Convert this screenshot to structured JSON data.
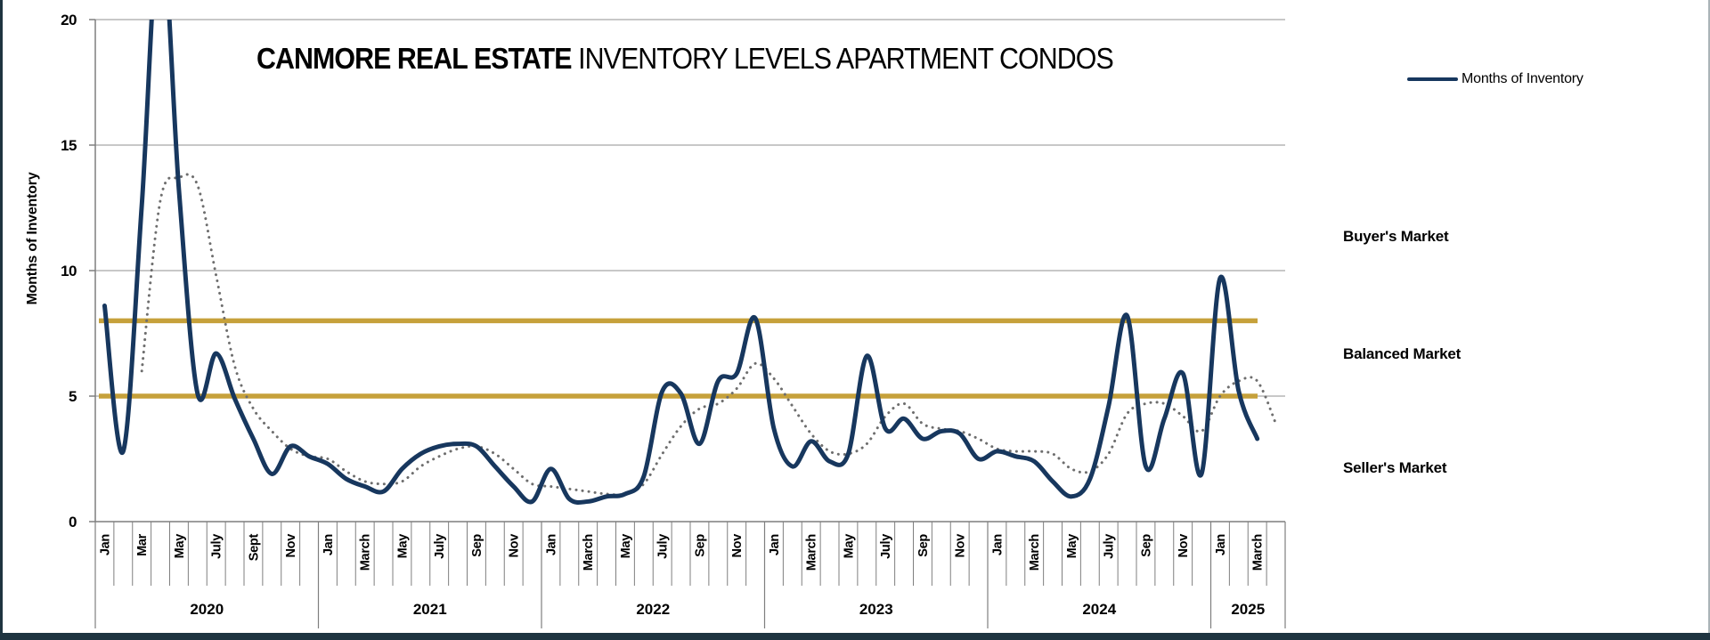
{
  "title": {
    "brand": "CANMORE REAL ESTATE",
    "rest": " INVENTORY LEVELS APARTMENT CONDOS"
  },
  "legend": {
    "series_label": "Months of Inventory"
  },
  "market_labels": {
    "buyers": "Buyer's Market",
    "balanced": "Balanced Market",
    "sellers": "Seller's Market"
  },
  "y_axis": {
    "title": "Months of Inventory",
    "ticks": [
      0,
      5,
      10,
      15,
      20
    ],
    "min": 0,
    "max": 20
  },
  "x_axis": {
    "years": [
      {
        "label": "2020",
        "month_labels": [
          "Jan",
          "",
          "Mar",
          "",
          "May",
          "",
          "July",
          "",
          "Sept",
          "",
          "Nov",
          ""
        ]
      },
      {
        "label": "2021",
        "month_labels": [
          "Jan",
          "",
          "March",
          "",
          "May",
          "",
          "July",
          "",
          "Sep",
          "",
          "Nov",
          ""
        ]
      },
      {
        "label": "2022",
        "month_labels": [
          "Jan",
          "",
          "March",
          "",
          "May",
          "",
          "July",
          "",
          "Sep",
          "",
          "Nov",
          ""
        ]
      },
      {
        "label": "2023",
        "month_labels": [
          "Jan",
          "",
          "March",
          "",
          "May",
          "",
          "July",
          "",
          "Sep",
          "",
          "Nov",
          ""
        ]
      },
      {
        "label": "2024",
        "month_labels": [
          "Jan",
          "",
          "March",
          "",
          "May",
          "",
          "July",
          "",
          "Sep",
          "",
          "Nov",
          ""
        ]
      },
      {
        "label": "2025",
        "month_labels": [
          "Jan",
          "",
          "March",
          ""
        ]
      }
    ]
  },
  "chart_data": {
    "type": "line",
    "title": "CANMORE REAL ESTATE INVENTORY LEVELS APARTMENT CONDOS",
    "xlabel": "",
    "ylabel": "Months of Inventory",
    "ylim": [
      0,
      20
    ],
    "grid": true,
    "x_start": "Jan 2020",
    "x_end": "Apr 2025",
    "x_slots": 64,
    "note": "Apr 2020 value exceeds chart top and is clipped at 20; plotted here as estimated 24",
    "series": [
      {
        "name": "Months of Inventory",
        "style": "solid",
        "color": "#17375E",
        "start_index": 0,
        "values": [
          8.6,
          2.8,
          12.6,
          24.0,
          13.2,
          5.1,
          6.7,
          4.9,
          3.3,
          1.9,
          3.0,
          2.6,
          2.3,
          1.7,
          1.4,
          1.2,
          2.1,
          2.7,
          3.0,
          3.1,
          3.0,
          2.2,
          1.4,
          0.8,
          2.1,
          0.9,
          0.8,
          1.0,
          1.1,
          1.8,
          5.2,
          5.1,
          3.1,
          5.6,
          5.9,
          8.1,
          3.7,
          2.2,
          3.2,
          2.4,
          2.7,
          6.6,
          3.7,
          4.1,
          3.3,
          3.6,
          3.5,
          2.5,
          2.8,
          2.6,
          2.4,
          1.6,
          1.0,
          1.7,
          4.6,
          8.2,
          2.2,
          4.1,
          5.9,
          1.9,
          9.7,
          5.2,
          3.3
        ]
      },
      {
        "name": "Trend (dotted)",
        "style": "dotted",
        "color": "#6E6E6E",
        "start_index": 2,
        "values": [
          6.0,
          12.8,
          13.7,
          13.4,
          9.8,
          6.2,
          4.5,
          3.6,
          2.9,
          2.6,
          2.5,
          2.0,
          1.6,
          1.5,
          1.6,
          2.2,
          2.6,
          2.9,
          3.0,
          2.7,
          2.1,
          1.5,
          1.4,
          1.3,
          1.2,
          1.1,
          1.1,
          1.5,
          2.7,
          3.8,
          4.5,
          4.7,
          5.3,
          6.3,
          5.7,
          4.6,
          3.5,
          2.8,
          2.7,
          3.1,
          4.2,
          4.7,
          3.9,
          3.7,
          3.6,
          3.3,
          2.9,
          2.8,
          2.8,
          2.7,
          2.1,
          2.0,
          2.7,
          4.3,
          4.7,
          4.7,
          4.2,
          3.6,
          5.0,
          5.6,
          5.6,
          3.9
        ]
      }
    ],
    "reference_lines": [
      {
        "name": "balanced-market-lower",
        "value": 5,
        "color": "#C6A13B"
      },
      {
        "name": "balanced-market-upper",
        "value": 8,
        "color": "#C6A13B"
      }
    ],
    "legend_position": "top-right"
  },
  "colors": {
    "line": "#17375E",
    "dotted": "#6E6E6E",
    "gold": "#C6A13B",
    "grid": "#A8A8A8",
    "axis": "#7F7F7F",
    "frame": "#1E3440"
  }
}
